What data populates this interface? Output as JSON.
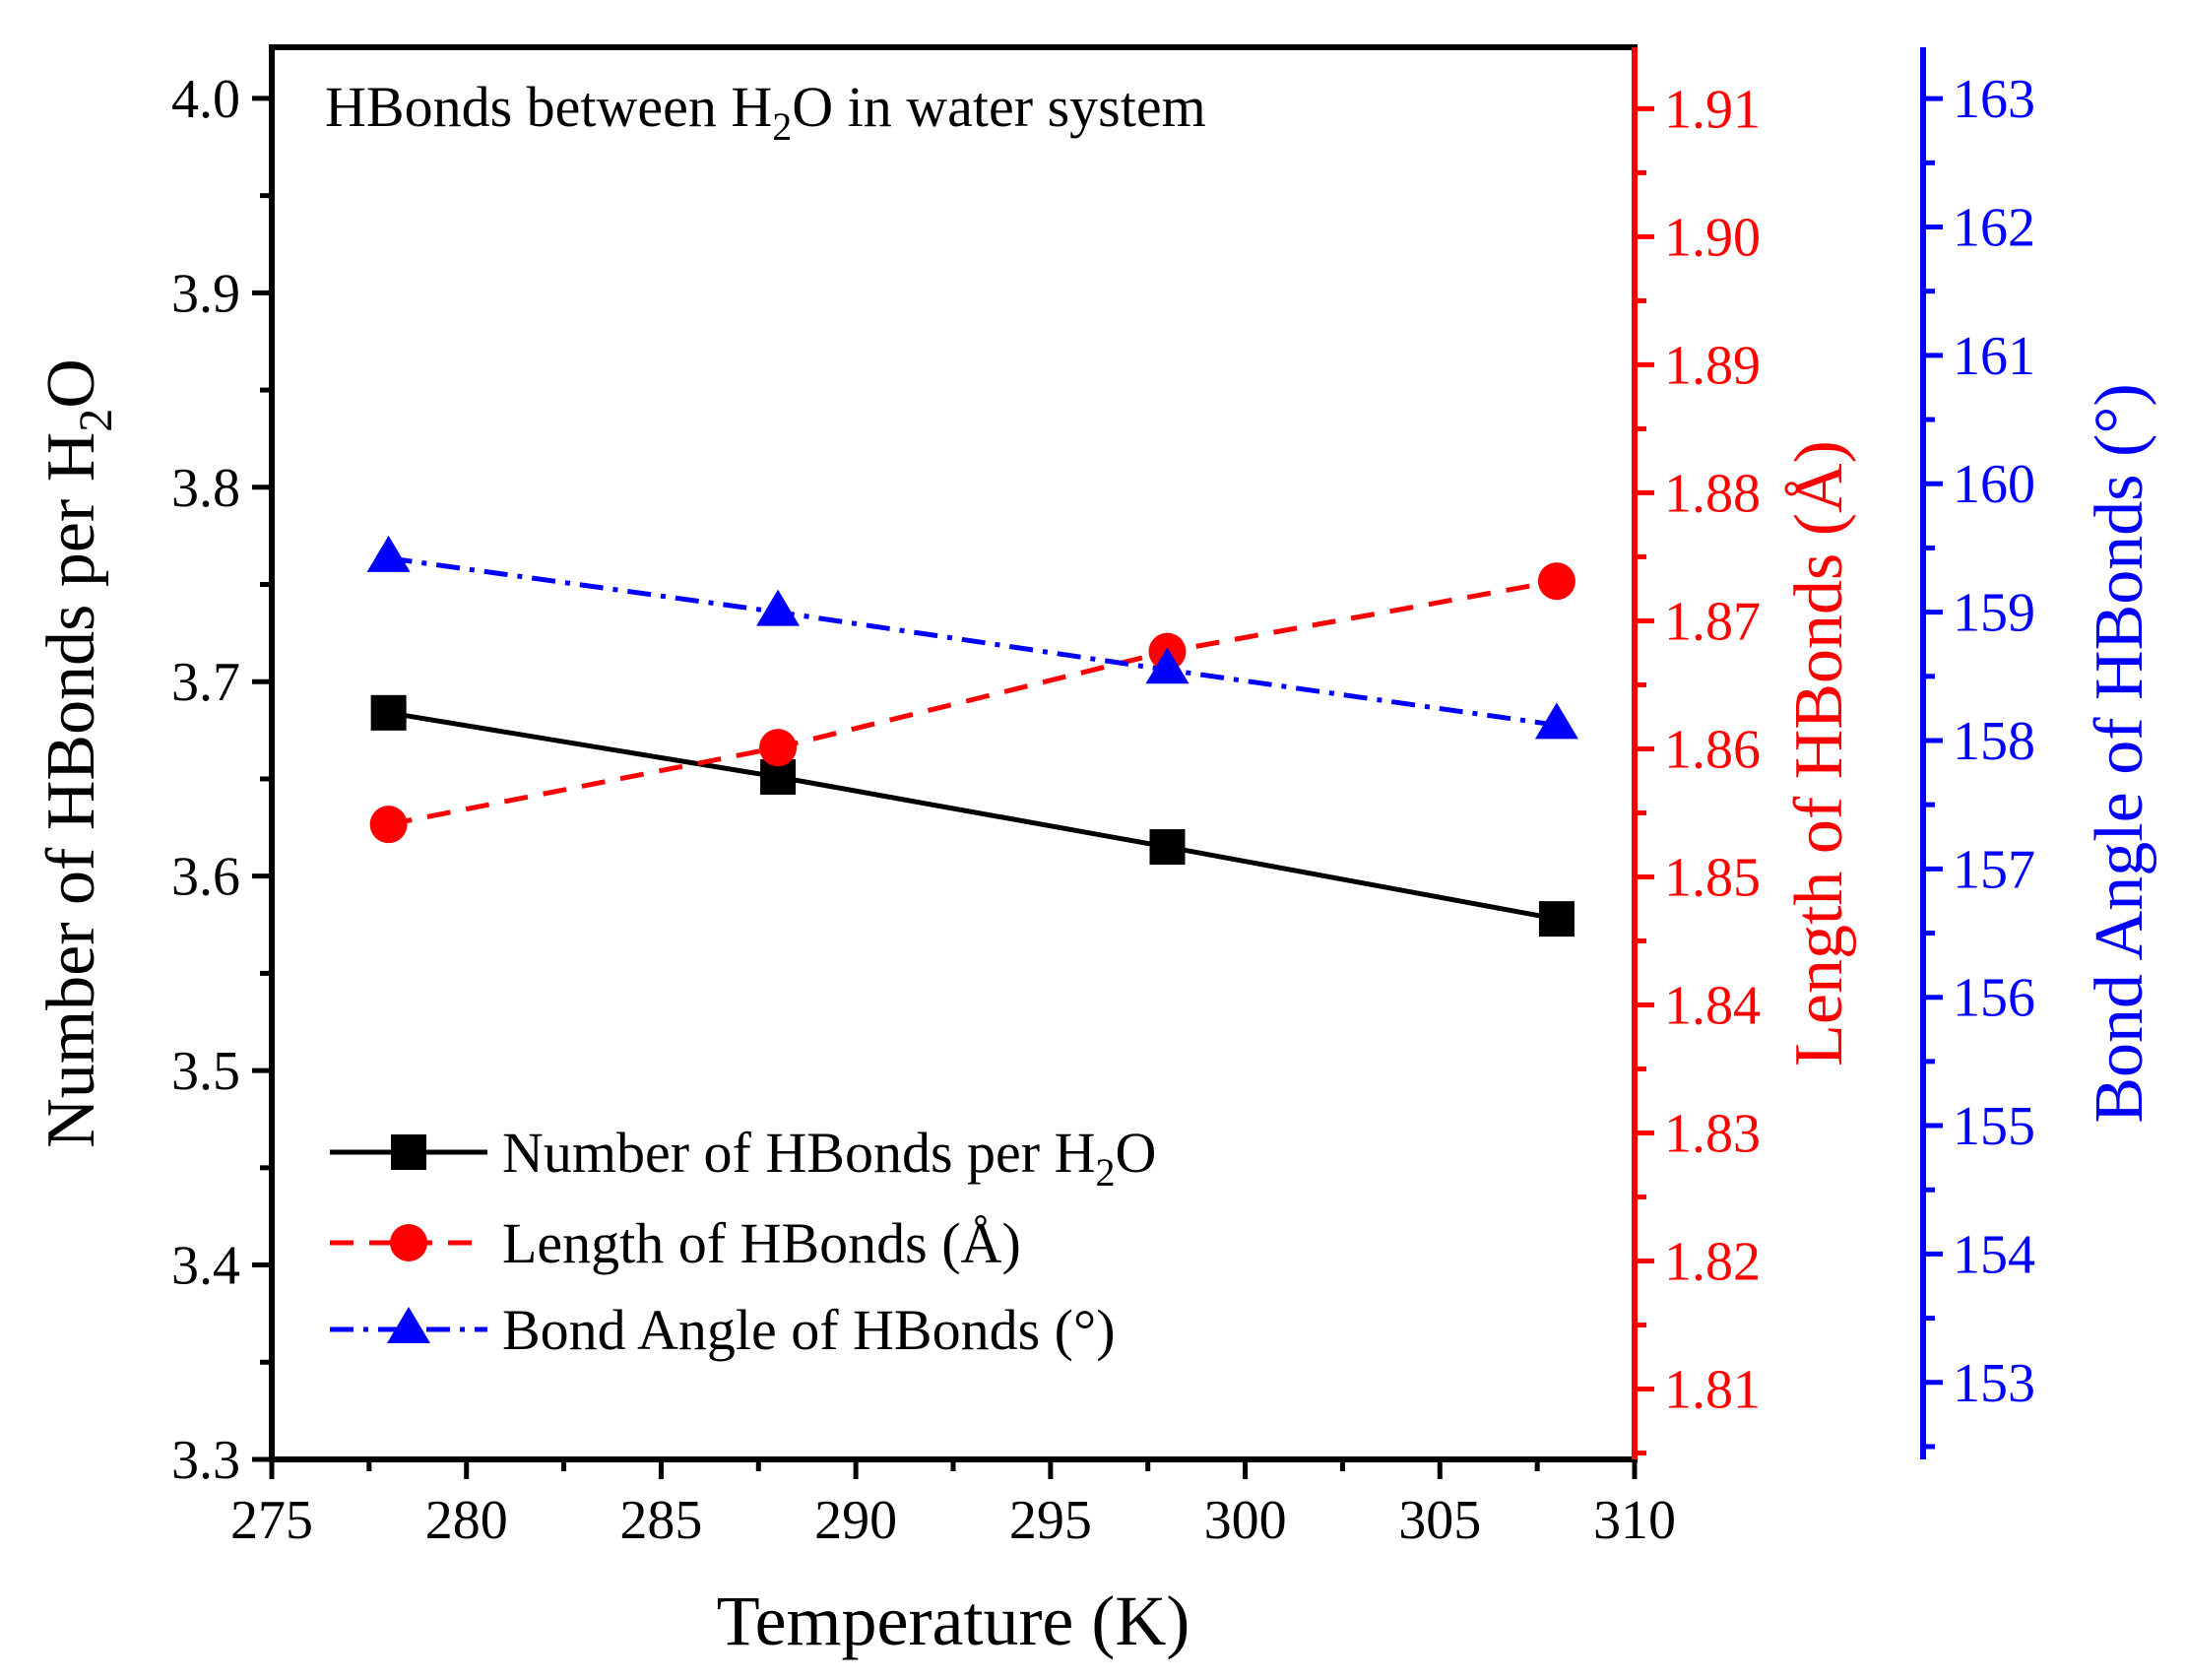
{
  "chart_data": {
    "type": "line",
    "title": "HBonds between H",
    "title_sub": "2",
    "title_tail": "O in water system",
    "xlabel": "Temperature (K)",
    "xlim": [
      275,
      310
    ],
    "xticks": [
      "275",
      "280",
      "285",
      "290",
      "295",
      "300",
      "305",
      "310"
    ],
    "x": [
      278,
      288,
      298,
      308
    ],
    "axes": {
      "left": {
        "label_main": "Number of HBonds per H",
        "label_sub": "2",
        "label_tail": "O",
        "lim": [
          3.3,
          4.0263
        ],
        "ticks": [
          "3.3",
          "3.4",
          "3.5",
          "3.6",
          "3.7",
          "3.8",
          "3.9",
          "4.0"
        ],
        "color": "#000000"
      },
      "right1": {
        "label": "Length of HBonds (Å)",
        "lim": [
          1.8045,
          1.9148
        ],
        "ticks": [
          "1.81",
          "1.82",
          "1.83",
          "1.84",
          "1.85",
          "1.86",
          "1.87",
          "1.88",
          "1.89",
          "1.90",
          "1.91"
        ],
        "color": "#ff0000"
      },
      "right2": {
        "label": "Bond Angle of HBonds (°)",
        "lim": [
          152.4,
          163.4
        ],
        "ticks": [
          "153",
          "154",
          "155",
          "156",
          "157",
          "158",
          "159",
          "160",
          "161",
          "162",
          "163"
        ],
        "color": "#0000ff"
      }
    },
    "series": [
      {
        "name": "Number of HBonds per H",
        "name_sub": "2",
        "name_tail": "O",
        "axis": "left",
        "values": [
          3.684,
          3.651,
          3.615,
          3.578
        ],
        "color": "#000000",
        "marker": "square",
        "dash": "solid"
      },
      {
        "name": "Length of HBonds (Å)",
        "axis": "right1",
        "values": [
          1.8541,
          1.8601,
          1.8676,
          1.8731
        ],
        "color": "#ff0000",
        "marker": "circle",
        "dash": "dashed"
      },
      {
        "name": "Bond Angle of HBonds (°)",
        "axis": "right2",
        "values": [
          159.42,
          159.0,
          158.55,
          158.12
        ],
        "color": "#0000ff",
        "marker": "triangle",
        "dash": "dashdot"
      }
    ],
    "legend_position": "bottom-left"
  }
}
